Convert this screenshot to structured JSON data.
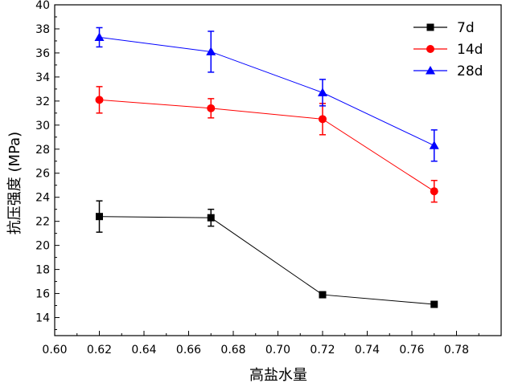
{
  "chart_data": {
    "type": "line",
    "xlabel": "高盐水量",
    "ylabel": "抗压强度 (MPa)",
    "xlim": [
      0.6,
      0.8
    ],
    "ylim": [
      12.5,
      40
    ],
    "x_ticks": [
      "0.60",
      "0.62",
      "0.64",
      "0.66",
      "0.68",
      "0.70",
      "0.72",
      "0.74",
      "0.76",
      "0.78"
    ],
    "y_ticks": [
      "14",
      "16",
      "18",
      "20",
      "22",
      "24",
      "26",
      "28",
      "30",
      "32",
      "34",
      "36",
      "38",
      "40"
    ],
    "legend": "top-right",
    "grid": false,
    "x": [
      0.62,
      0.67,
      0.72,
      0.77
    ],
    "series": [
      {
        "name": "7d",
        "color": "#000000",
        "marker": "square",
        "values": [
          22.4,
          22.3,
          15.9,
          15.1
        ],
        "errors": [
          1.3,
          0.7,
          0.1,
          0.1
        ]
      },
      {
        "name": "14d",
        "color": "#ff0000",
        "marker": "circle",
        "values": [
          32.1,
          31.4,
          30.5,
          24.5
        ],
        "errors": [
          1.1,
          0.8,
          1.3,
          0.9
        ]
      },
      {
        "name": "28d",
        "color": "#0000ff",
        "marker": "triangle",
        "values": [
          37.3,
          36.1,
          32.7,
          28.3
        ],
        "errors": [
          0.8,
          1.7,
          1.1,
          1.3
        ]
      }
    ]
  }
}
